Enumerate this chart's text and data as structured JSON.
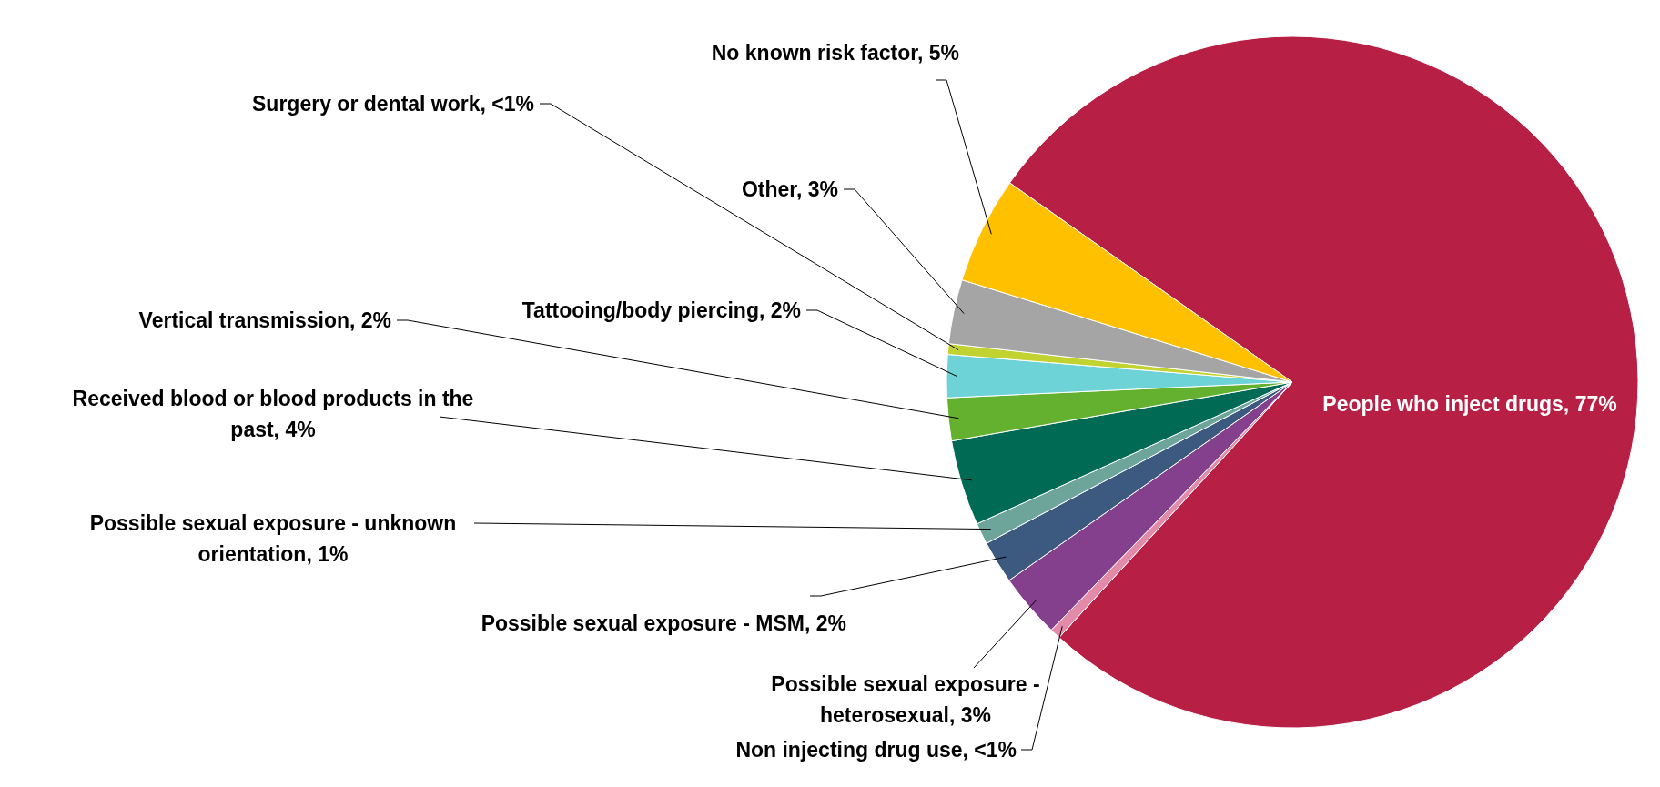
{
  "chart_data": {
    "type": "pie",
    "categories": [
      "People who inject drugs",
      "Non injecting drug use",
      "Possible sexual exposure - heterosexual",
      "Possible sexual exposure - MSM",
      "Possible sexual exposure - unknown orientation",
      "Received blood or blood products in the past",
      "Vertical transmission",
      "Tattooing/body piercing",
      "Surgery or dental work",
      "Other",
      "No known risk factor"
    ],
    "values": [
      77,
      0.5,
      3,
      2,
      1,
      4,
      2,
      2,
      0.5,
      3,
      5
    ],
    "value_labels": [
      "77%",
      "<1%",
      "3%",
      "2%",
      "1%",
      "4%",
      "2%",
      "2%",
      "<1%",
      "3%",
      "5%"
    ],
    "colors": [
      "#b81f45",
      "#e38aa8",
      "#84408c",
      "#3c5a80",
      "#6ea59a",
      "#006a55",
      "#64b02f",
      "#6dd3d6",
      "#c2d230",
      "#a5a5a5",
      "#ffc000"
    ]
  }
}
